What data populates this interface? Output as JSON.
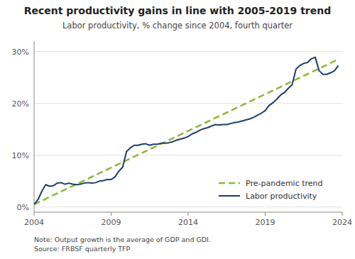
{
  "chart_data": {
    "type": "line",
    "title": "Recent productivity gains in line with 2005-2019 trend",
    "subtitle": "Labor productivity, % change since 2004, fourth quarter",
    "note": "Note: Output growth is the average of GDP and GDI.\nSource: FRBSF quarterly TFP",
    "xlim": [
      2004,
      2024
    ],
    "ylim": [
      -0.01,
      0.32
    ],
    "xticks": [
      2004,
      2009,
      2014,
      2019,
      2024
    ],
    "yticks": [
      {
        "value": 0.0,
        "label": "0%"
      },
      {
        "value": 0.1,
        "label": "10%"
      },
      {
        "value": 0.2,
        "label": "20%"
      },
      {
        "value": 0.3,
        "label": "30%"
      }
    ],
    "grid": "y",
    "legend": "lower right",
    "series": [
      {
        "name": "Pre-pandemic trend",
        "color": "#8db832",
        "line_style": "dashed",
        "x": [
          2004.0,
          2023.75
        ],
        "values": [
          0.005,
          0.285
        ]
      },
      {
        "name": "Labor productivity",
        "color": "#1a3f6f",
        "line_style": "solid",
        "x": [
          2004.0,
          2004.25,
          2004.5,
          2004.75,
          2005.0,
          2005.25,
          2005.5,
          2005.75,
          2006.0,
          2006.25,
          2006.5,
          2006.75,
          2007.0,
          2007.25,
          2007.5,
          2007.75,
          2008.0,
          2008.25,
          2008.5,
          2008.75,
          2009.0,
          2009.25,
          2009.5,
          2009.75,
          2010.0,
          2010.25,
          2010.5,
          2010.75,
          2011.0,
          2011.25,
          2011.5,
          2011.75,
          2012.0,
          2012.25,
          2012.5,
          2012.75,
          2013.0,
          2013.25,
          2013.5,
          2013.75,
          2014.0,
          2014.25,
          2014.5,
          2014.75,
          2015.0,
          2015.25,
          2015.5,
          2015.75,
          2016.0,
          2016.25,
          2016.5,
          2016.75,
          2017.0,
          2017.25,
          2017.5,
          2017.75,
          2018.0,
          2018.25,
          2018.5,
          2018.75,
          2019.0,
          2019.25,
          2019.5,
          2019.75,
          2020.0,
          2020.25,
          2020.5,
          2020.75,
          2021.0,
          2021.25,
          2021.5,
          2021.75,
          2022.0,
          2022.25,
          2022.5,
          2022.75,
          2023.0,
          2023.25,
          2023.5,
          2023.75
        ],
        "values": [
          0.005,
          0.014,
          0.03,
          0.043,
          0.04,
          0.041,
          0.046,
          0.047,
          0.044,
          0.046,
          0.044,
          0.043,
          0.044,
          0.046,
          0.047,
          0.046,
          0.047,
          0.05,
          0.051,
          0.053,
          0.053,
          0.058,
          0.069,
          0.077,
          0.107,
          0.114,
          0.119,
          0.119,
          0.121,
          0.122,
          0.119,
          0.121,
          0.121,
          0.123,
          0.123,
          0.124,
          0.126,
          0.129,
          0.131,
          0.133,
          0.136,
          0.141,
          0.144,
          0.148,
          0.151,
          0.153,
          0.156,
          0.159,
          0.158,
          0.159,
          0.159,
          0.161,
          0.163,
          0.164,
          0.166,
          0.168,
          0.17,
          0.173,
          0.177,
          0.181,
          0.186,
          0.196,
          0.201,
          0.208,
          0.216,
          0.221,
          0.229,
          0.236,
          0.266,
          0.273,
          0.277,
          0.279,
          0.286,
          0.289,
          0.263,
          0.256,
          0.256,
          0.259,
          0.263,
          0.273
        ]
      }
    ]
  }
}
